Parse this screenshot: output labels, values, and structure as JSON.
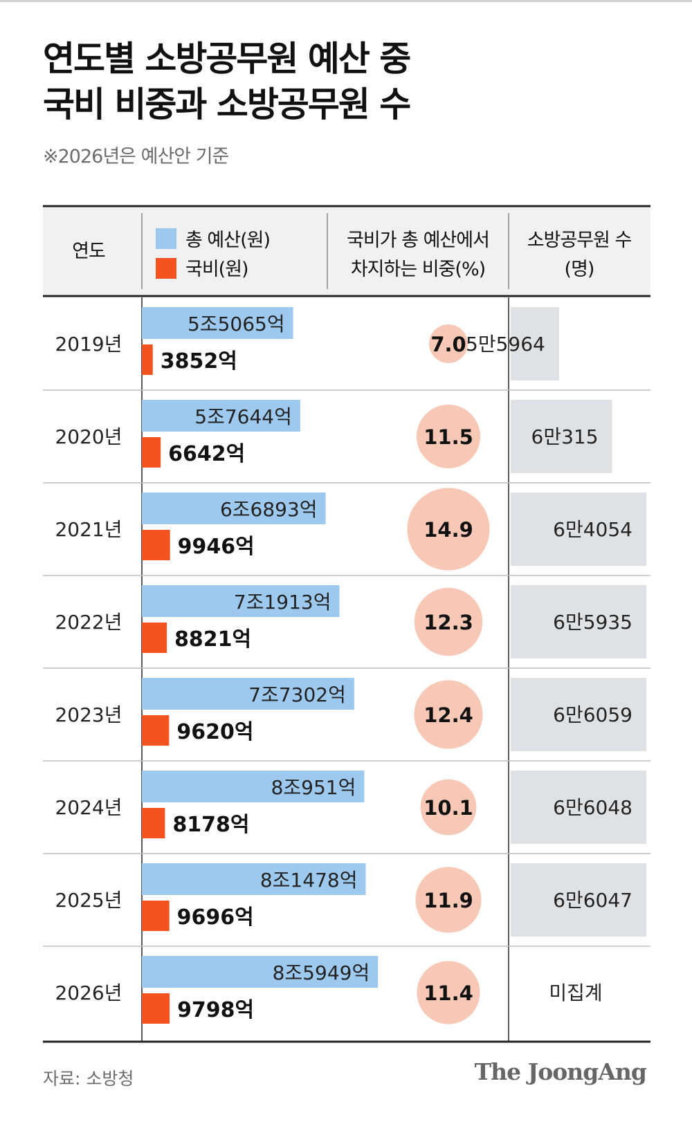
{
  "title": "연도별 소방공무원 예산 중\n국비 비중과 소방공무원 수",
  "subtitle": "※2026년은 예산안 기준",
  "header": {
    "year": "연도",
    "legend_total": "총 예산(원)",
    "legend_national": "국비(원)",
    "ratio_line1": "국비가 총 예산에서",
    "ratio_line2": "차지하는 비중(%)",
    "ff_line1": "소방공무원 수",
    "ff_line2": "(명)"
  },
  "colors": {
    "total": "#9ec9ee",
    "national": "#f4521e",
    "circle": "#f7c8b6",
    "ff_box": "#dfe2e5"
  },
  "chart_data": {
    "type": "table",
    "columns": [
      "연도",
      "총 예산(원)",
      "국비(원)",
      "국비가 총 예산에서 차지하는 비중(%)",
      "소방공무원 수(명)"
    ],
    "rows": [
      {
        "year": "2019년",
        "total_label": "5조5065억",
        "total": 55065,
        "national_label": "3852억",
        "national": 3852,
        "ratio_label": "7.0",
        "ratio": 7.0,
        "ff_label": "5만5964",
        "ff": 55964
      },
      {
        "year": "2020년",
        "total_label": "5조7644억",
        "total": 57644,
        "national_label": "6642억",
        "national": 6642,
        "ratio_label": "11.5",
        "ratio": 11.5,
        "ff_label": "6만315",
        "ff": 60315
      },
      {
        "year": "2021년",
        "total_label": "6조6893억",
        "total": 66893,
        "national_label": "9946억",
        "national": 9946,
        "ratio_label": "14.9",
        "ratio": 14.9,
        "ff_label": "6만4054",
        "ff": 64054
      },
      {
        "year": "2022년",
        "total_label": "7조1913억",
        "total": 71913,
        "national_label": "8821억",
        "national": 8821,
        "ratio_label": "12.3",
        "ratio": 12.3,
        "ff_label": "6만5935",
        "ff": 65935
      },
      {
        "year": "2023년",
        "total_label": "7조7302억",
        "total": 77302,
        "national_label": "9620억",
        "national": 9620,
        "ratio_label": "12.4",
        "ratio": 12.4,
        "ff_label": "6만6059",
        "ff": 66059
      },
      {
        "year": "2024년",
        "total_label": "8조951억",
        "total": 80951,
        "national_label": "8178억",
        "national": 8178,
        "ratio_label": "10.1",
        "ratio": 10.1,
        "ff_label": "6만6048",
        "ff": 66048
      },
      {
        "year": "2025년",
        "total_label": "8조1478억",
        "total": 81478,
        "national_label": "9696억",
        "national": 9696,
        "ratio_label": "11.9",
        "ratio": 11.9,
        "ff_label": "6만6047",
        "ff": 66047
      },
      {
        "year": "2026년",
        "total_label": "8조5949억",
        "total": 85949,
        "national_label": "9798억",
        "national": 9798,
        "ratio_label": "11.4",
        "ratio": 11.4,
        "ff_label": "미집계",
        "ff": null
      }
    ]
  },
  "source": "자료: 소방청",
  "logo": "The JoongAng"
}
